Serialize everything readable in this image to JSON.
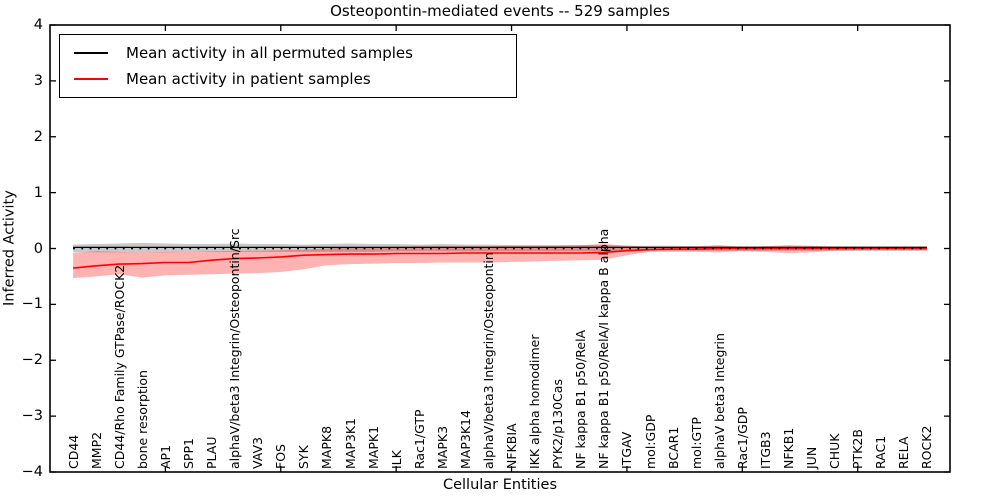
{
  "title": "Osteopontin-mediated events -- 529 samples",
  "legend": {
    "position": "upper left",
    "items": [
      {
        "label": "Mean activity in all permuted samples",
        "color": "#000000"
      },
      {
        "label": "Mean activity in patient samples",
        "color": "#ff0000"
      }
    ]
  },
  "chart_data": {
    "type": "line",
    "title": "Osteopontin-mediated events -- 529 samples",
    "xlabel": "Cellular Entities",
    "ylabel": "Inferred Activity",
    "ylim": [
      -4,
      4
    ],
    "xlim": [
      0,
      39
    ],
    "grid": false,
    "yticks": [
      -4,
      -3,
      -2,
      -1,
      0,
      1,
      2,
      3,
      4
    ],
    "xtick_positions": [
      5,
      10,
      15,
      20,
      25,
      30,
      35
    ],
    "zero_line": {
      "y": 0,
      "style": "dotted",
      "color": "#000000"
    },
    "categories": [
      "CD44",
      "MMP2",
      "CD44/Rho Family GTPase/ROCK2",
      "bone resorption",
      "AP1",
      "SPP1",
      "PLAU",
      "alphaV/beta3 Integrin/Osteopontin/Src",
      "VAV3",
      "FOS",
      "SYK",
      "MAPK8",
      "MAP3K1",
      "MAPK1",
      "ILK",
      "Rac1/GTP",
      "MAPK3",
      "MAP3K14",
      "alphaV/beta3 Integrin/Osteopontin",
      "NFKBIA",
      "IKK alpha homodimer",
      "PYK2/p130Cas",
      "NF kappa B1 p50/RelA",
      "NF kappa B1 p50/RelA/I kappa B alpha",
      "ITGAV",
      "mol:GDP",
      "BCAR1",
      "mol:GTP",
      "alphaV beta3 Integrin",
      "Rac1/GDP",
      "ITGB3",
      "NFKB1",
      "JUN",
      "CHUK",
      "PTK2B",
      "RAC1",
      "RELA",
      "ROCK2"
    ],
    "series": [
      {
        "name": "Mean activity in all permuted samples",
        "color": "#000000",
        "values": [
          0.02,
          0.02,
          0.02,
          0.02,
          0.02,
          0.02,
          0.02,
          0.02,
          0.02,
          0.02,
          0.02,
          0.02,
          0.02,
          0.02,
          0.02,
          0.02,
          0.02,
          0.02,
          0.02,
          0.02,
          0.02,
          0.02,
          0.02,
          0.02,
          0.02,
          0.02,
          0.02,
          0.02,
          0.02,
          0.02,
          0.02,
          0.02,
          0.02,
          0.02,
          0.02,
          0.02,
          0.02,
          0.02
        ]
      },
      {
        "name": "Mean activity in patient samples",
        "color": "#ff0000",
        "values": [
          -0.35,
          -0.31,
          -0.28,
          -0.27,
          -0.25,
          -0.25,
          -0.21,
          -0.18,
          -0.17,
          -0.15,
          -0.12,
          -0.11,
          -0.1,
          -0.1,
          -0.09,
          -0.09,
          -0.09,
          -0.08,
          -0.08,
          -0.08,
          -0.08,
          -0.08,
          -0.08,
          -0.07,
          -0.04,
          -0.02,
          -0.01,
          -0.01,
          0,
          0,
          0,
          0,
          0,
          0,
          0,
          0,
          0,
          0
        ]
      }
    ],
    "bands": [
      {
        "name": "permuted samples range",
        "color": "#888888",
        "opacity": 0.45,
        "high": [
          0.07,
          0.08,
          0.09,
          0.1,
          0.09,
          0.08,
          0.08,
          0.09,
          0.08,
          0.08,
          0.07,
          0.08,
          0.09,
          0.08,
          0.08,
          0.07,
          0.08,
          0.07,
          0.07,
          0.06,
          0.06,
          0.06,
          0.06,
          0.06,
          0.05,
          0.05,
          0.05,
          0.04,
          0.04,
          0.04,
          0.04,
          0.04,
          0.04,
          0.04,
          0.04,
          0.04,
          0.04,
          0.04
        ],
        "low": [
          -0.07,
          -0.07,
          -0.07,
          -0.07,
          -0.07,
          -0.06,
          -0.06,
          -0.06,
          -0.06,
          -0.06,
          -0.06,
          -0.06,
          -0.06,
          -0.06,
          -0.05,
          -0.05,
          -0.05,
          -0.05,
          -0.05,
          -0.05,
          -0.05,
          -0.05,
          -0.05,
          -0.05,
          -0.05,
          -0.04,
          -0.04,
          -0.04,
          -0.04,
          -0.04,
          -0.04,
          -0.04,
          -0.04,
          -0.04,
          -0.04,
          -0.04,
          -0.04,
          -0.04
        ]
      },
      {
        "name": "patient samples range",
        "color": "#ff0000",
        "opacity": 0.3,
        "high": [
          -0.08,
          -0.05,
          -0.06,
          -0.07,
          -0.06,
          -0.06,
          -0.05,
          -0.04,
          -0.04,
          -0.03,
          -0.02,
          0.0,
          0.02,
          0.03,
          0.03,
          0.04,
          0.04,
          0.04,
          0.04,
          0.05,
          0.05,
          0.05,
          0.06,
          0.08,
          0.05,
          0.03,
          0.03,
          0.04,
          0.06,
          0.03,
          0.04,
          0.06,
          0.05,
          0.03,
          0.03,
          0.03,
          0.03,
          0.03
        ],
        "low": [
          -0.53,
          -0.5,
          -0.46,
          -0.52,
          -0.48,
          -0.47,
          -0.46,
          -0.45,
          -0.44,
          -0.42,
          -0.37,
          -0.3,
          -0.28,
          -0.27,
          -0.26,
          -0.26,
          -0.25,
          -0.25,
          -0.25,
          -0.24,
          -0.23,
          -0.22,
          -0.21,
          -0.2,
          -0.12,
          -0.06,
          -0.06,
          -0.06,
          -0.07,
          -0.05,
          -0.06,
          -0.08,
          -0.07,
          -0.04,
          -0.03,
          -0.03,
          -0.03,
          -0.03
        ]
      }
    ]
  }
}
